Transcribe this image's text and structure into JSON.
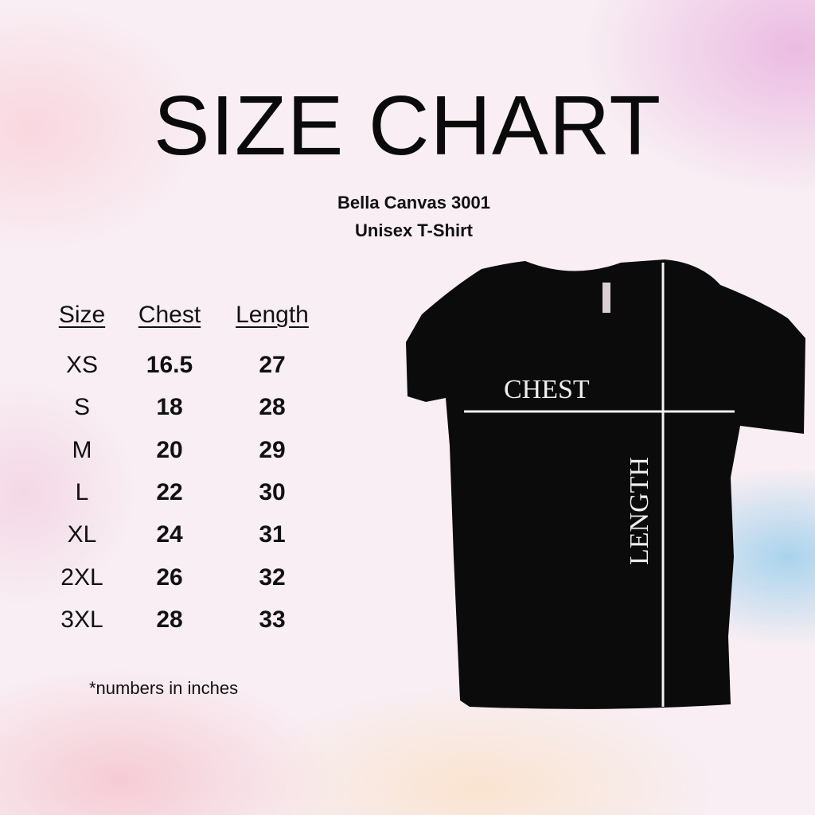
{
  "title": "SIZE CHART",
  "subtitle": {
    "line1": "Bella Canvas 3001",
    "line2": "Unisex T-Shirt"
  },
  "table": {
    "headers": [
      "Size",
      "Chest",
      "Length"
    ],
    "rows": [
      {
        "size": "XS",
        "chest": "16.5",
        "length": "27"
      },
      {
        "size": "S",
        "chest": "18",
        "length": "28"
      },
      {
        "size": "M",
        "chest": "20",
        "length": "29"
      },
      {
        "size": "L",
        "chest": "22",
        "length": "30"
      },
      {
        "size": "XL",
        "chest": "24",
        "length": "31"
      },
      {
        "size": "2XL",
        "chest": "26",
        "length": "32"
      },
      {
        "size": "3XL",
        "chest": "28",
        "length": "33"
      }
    ]
  },
  "note": "*numbers in inches",
  "diagram": {
    "chest_label": "CHEST",
    "length_label": "LENGTH",
    "shirt_color": "#0b0b0b",
    "line_color": "#f2f2f2"
  }
}
